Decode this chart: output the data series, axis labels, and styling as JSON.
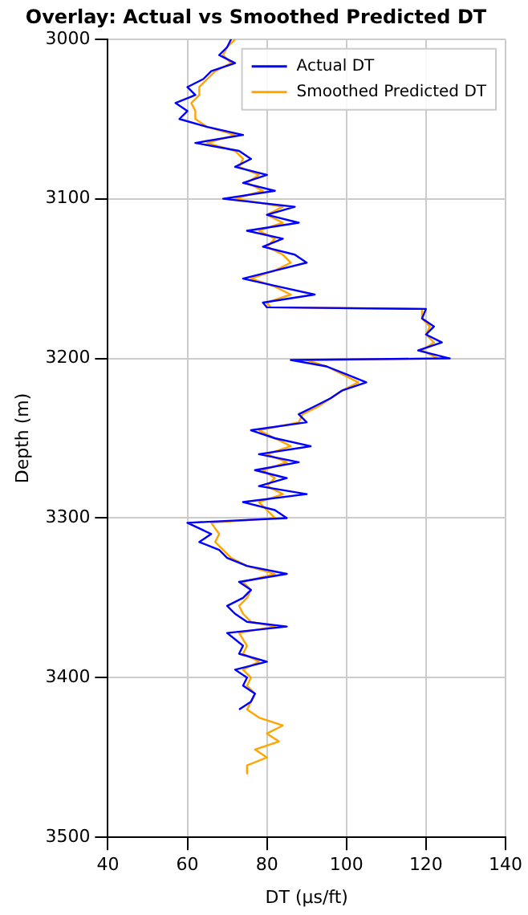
{
  "chart_data": {
    "type": "line",
    "title": "Overlay: Actual vs Smoothed Predicted DT",
    "xlabel": "DT (µs/ft)",
    "ylabel": "Depth (m)",
    "xlim": [
      40,
      140
    ],
    "xticks": [
      40,
      60,
      80,
      100,
      120,
      140
    ],
    "ylim": [
      3500,
      3000
    ],
    "yticks": [
      3000,
      3100,
      3200,
      3300,
      3400,
      3500
    ],
    "grid": true,
    "legend": "top right",
    "marker": "none",
    "line_style": "solid",
    "series": [
      {
        "name": "Actual DT",
        "color": "#0000ff",
        "x": [
          71,
          70,
          68,
          72,
          66,
          64,
          60,
          62,
          57,
          60,
          58,
          65,
          74,
          62,
          73,
          76,
          72,
          80,
          74,
          82,
          69,
          87,
          80,
          88,
          75,
          84,
          79,
          87,
          90,
          82,
          74,
          83,
          92,
          79,
          80,
          120,
          119,
          122,
          120,
          124,
          118,
          126,
          86,
          95,
          100,
          105,
          99,
          96,
          92,
          88,
          90,
          76,
          82,
          91,
          78,
          88,
          77,
          85,
          78,
          90,
          74,
          82,
          85,
          60,
          66,
          63,
          68,
          70,
          75,
          85,
          73,
          76,
          74,
          70,
          72,
          75,
          85,
          70,
          74,
          73,
          80,
          72,
          75,
          74,
          77,
          76,
          73
        ],
        "values": [
          3000,
          3005,
          3010,
          3015,
          3020,
          3025,
          3030,
          3035,
          3040,
          3045,
          3050,
          3055,
          3060,
          3065,
          3070,
          3075,
          3080,
          3085,
          3090,
          3095,
          3100,
          3105,
          3110,
          3115,
          3120,
          3125,
          3130,
          3135,
          3140,
          3145,
          3150,
          3155,
          3160,
          3165,
          3168,
          3169,
          3175,
          3180,
          3185,
          3190,
          3195,
          3200,
          3201,
          3205,
          3210,
          3215,
          3220,
          3225,
          3230,
          3235,
          3240,
          3245,
          3250,
          3255,
          3260,
          3265,
          3270,
          3275,
          3280,
          3285,
          3290,
          3295,
          3300,
          3303,
          3310,
          3315,
          3320,
          3325,
          3330,
          3335,
          3340,
          3345,
          3350,
          3355,
          3360,
          3365,
          3368,
          3372,
          3380,
          3385,
          3390,
          3395,
          3400,
          3405,
          3410,
          3415,
          3420
        ]
      },
      {
        "name": "Smoothed Predicted DT",
        "color": "#ffa500",
        "x": [
          72,
          70,
          69,
          71,
          67,
          65,
          63,
          63,
          61,
          62,
          62,
          65,
          72,
          65,
          72,
          74,
          73,
          78,
          75,
          79,
          72,
          84,
          80,
          84,
          78,
          82,
          80,
          84,
          86,
          82,
          76,
          82,
          86,
          80,
          81,
          119,
          119,
          121,
          120,
          122,
          119,
          123,
          90,
          95,
          99,
          103,
          99,
          96,
          93,
          89,
          88,
          78,
          82,
          86,
          80,
          85,
          79,
          82,
          80,
          84,
          78,
          80,
          82,
          66,
          68,
          67,
          69,
          71,
          75,
          82,
          74,
          76,
          75,
          73,
          74,
          76,
          82,
          73,
          75,
          74,
          78,
          74,
          76,
          75,
          77,
          76,
          75,
          78,
          84,
          80,
          83,
          77,
          80,
          75,
          75
        ],
        "values": [
          3000,
          3005,
          3010,
          3015,
          3020,
          3025,
          3030,
          3035,
          3040,
          3045,
          3050,
          3055,
          3060,
          3065,
          3070,
          3075,
          3080,
          3085,
          3090,
          3095,
          3100,
          3105,
          3110,
          3115,
          3120,
          3125,
          3130,
          3135,
          3140,
          3145,
          3150,
          3155,
          3160,
          3165,
          3168,
          3169,
          3175,
          3180,
          3185,
          3190,
          3195,
          3200,
          3201,
          3205,
          3210,
          3215,
          3220,
          3225,
          3230,
          3235,
          3240,
          3245,
          3250,
          3255,
          3260,
          3265,
          3270,
          3275,
          3280,
          3285,
          3290,
          3295,
          3300,
          3303,
          3310,
          3315,
          3320,
          3325,
          3330,
          3335,
          3340,
          3345,
          3350,
          3355,
          3360,
          3365,
          3368,
          3372,
          3380,
          3385,
          3390,
          3395,
          3400,
          3405,
          3410,
          3415,
          3420,
          3425,
          3430,
          3435,
          3440,
          3445,
          3450,
          3455,
          3460
        ]
      }
    ]
  }
}
